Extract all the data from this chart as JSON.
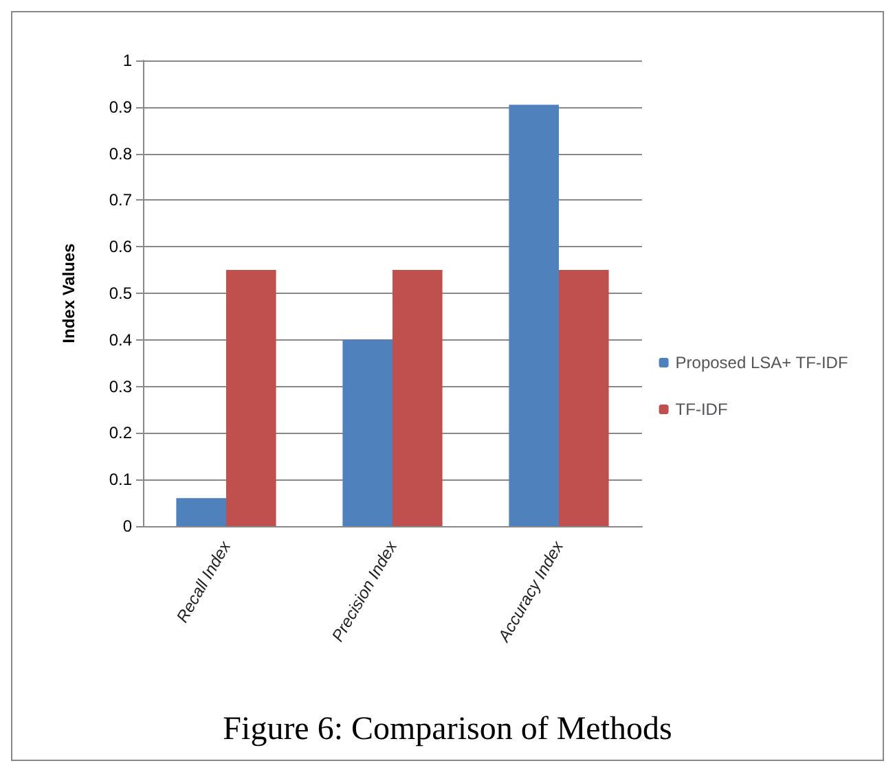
{
  "chart_data": {
    "type": "bar",
    "ylabel": "Index Values",
    "categories": [
      "Recall Index",
      "Precision Index",
      "Accuracy Index"
    ],
    "series": [
      {
        "name": "Proposed LSA+ TF-IDF",
        "color": "#4f81bd",
        "values": [
          0.06,
          0.4,
          0.905
        ]
      },
      {
        "name": "TF-IDF",
        "color": "#c0504d",
        "values": [
          0.55,
          0.55,
          0.55
        ]
      }
    ],
    "ylim": [
      0,
      1
    ],
    "yticks": [
      0,
      0.1,
      0.2,
      0.3,
      0.4,
      0.5,
      0.6,
      0.7,
      0.8,
      0.9,
      1
    ],
    "grid": "y",
    "legend": "right",
    "annotations": [
      "Figure 6: Comparison of Methods"
    ]
  }
}
